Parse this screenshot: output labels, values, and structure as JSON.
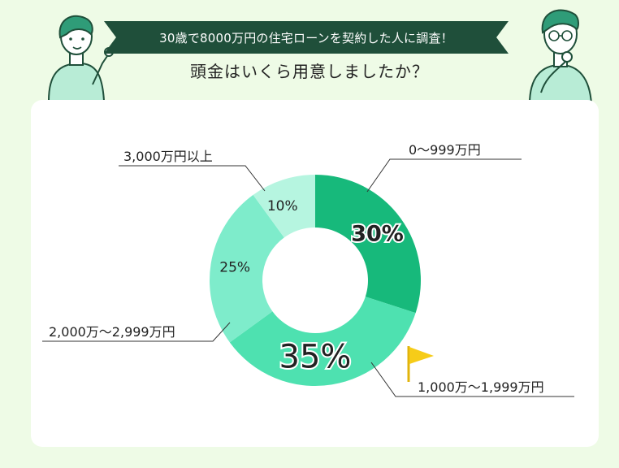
{
  "banner": {
    "text": "30歳で8000万円の住宅ローンを契約した人に調査！"
  },
  "heading": {
    "text": "頭金はいくら用意しましたか？"
  },
  "chart_data": {
    "type": "pie",
    "donut": true,
    "start": "top",
    "direction": "clockwise",
    "categories": [
      "0〜999万円",
      "1,000万〜1,999万円",
      "2,000万〜2,999万円",
      "3,000万円以上"
    ],
    "values": [
      30,
      35,
      25,
      10
    ],
    "value_labels": [
      "30%",
      "35%",
      "25%",
      "10%"
    ],
    "highlight": "1,000万〜1,999万円",
    "colors": [
      "#17b97b",
      "#4ee1b0",
      "#7eeccb",
      "#b6f5e0"
    ]
  },
  "illustrations": [
    "person-pointing",
    "person-thinking",
    "flag-icon"
  ]
}
